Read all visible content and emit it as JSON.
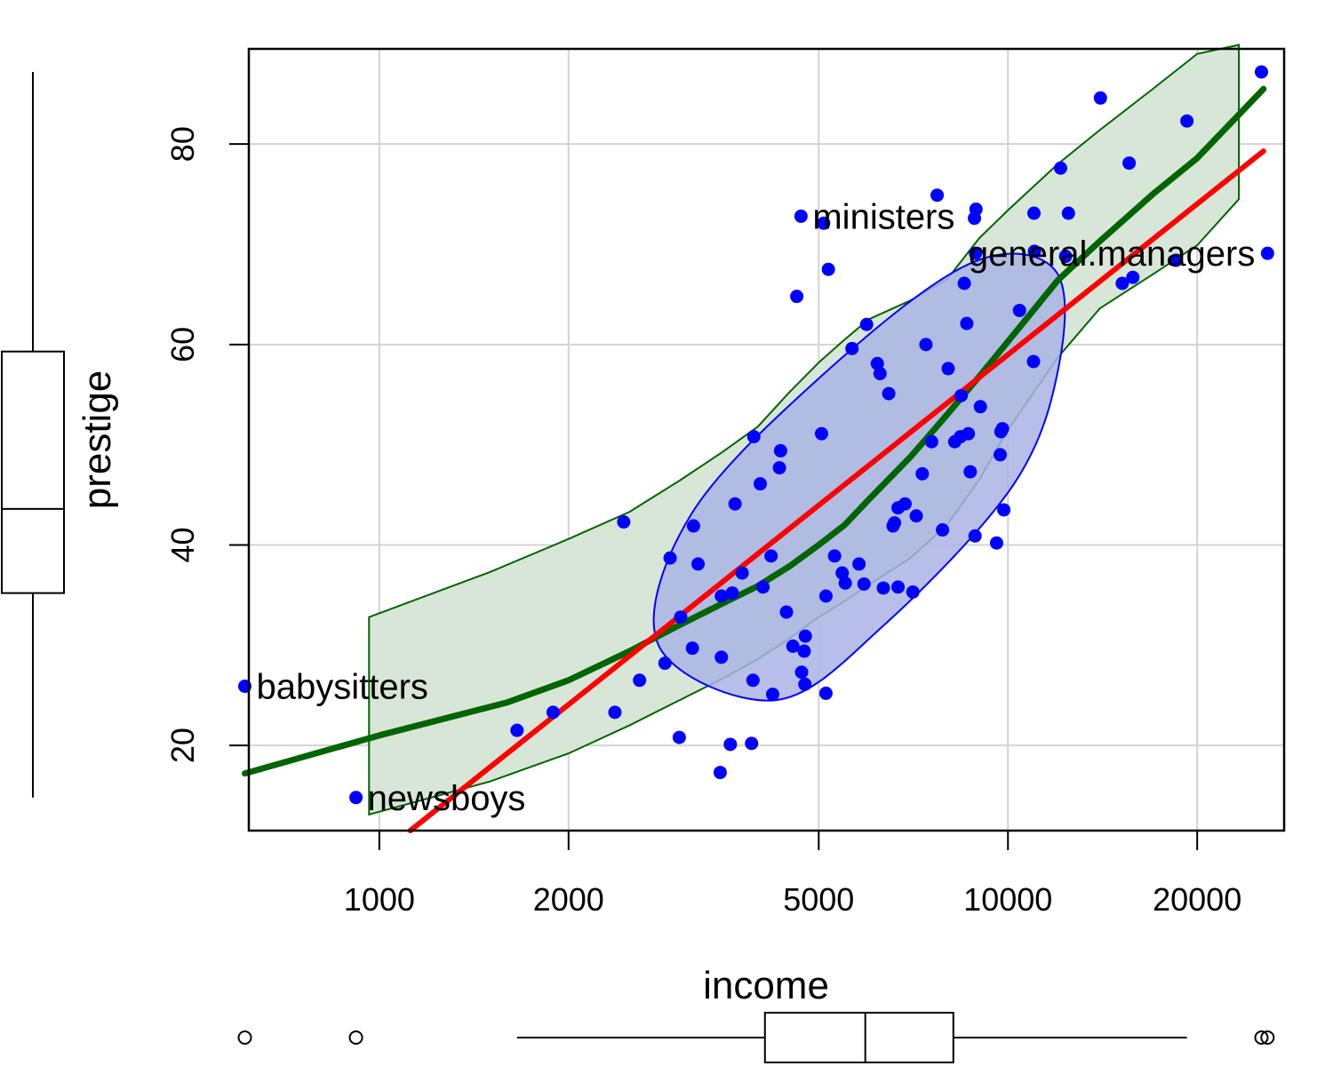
{
  "chart_data": {
    "type": "scatter",
    "xlabel": "income",
    "ylabel": "prestige",
    "x_scale": "log",
    "xlim": [
      620,
      27500
    ],
    "ylim": [
      11.5,
      89.5
    ],
    "grid": true,
    "x_ticks": [
      1000,
      2000,
      5000,
      10000,
      20000
    ],
    "y_ticks": [
      20,
      40,
      60,
      80
    ],
    "colors": {
      "points": "#0000ff",
      "regression_line": "#ff0000",
      "smoother": "#006400",
      "smoother_band_fill": "#d7e6d7",
      "smoother_band_stroke": "#006400",
      "ellipse_fill": "#aab4e4",
      "ellipse_stroke": "#0000ff",
      "grid": "#d3d3d3",
      "boxplot": "#000000"
    },
    "points": [
      {
        "x": 611,
        "y": 25.9
      },
      {
        "x": 918,
        "y": 14.8
      },
      {
        "x": 1656,
        "y": 21.5
      },
      {
        "x": 1890,
        "y": 23.3
      },
      {
        "x": 2370,
        "y": 23.3
      },
      {
        "x": 2448,
        "y": 42.3
      },
      {
        "x": 2594,
        "y": 26.5
      },
      {
        "x": 2847,
        "y": 28.2
      },
      {
        "x": 2901,
        "y": 38.7
      },
      {
        "x": 3000,
        "y": 20.8
      },
      {
        "x": 3016,
        "y": 32.8
      },
      {
        "x": 3148,
        "y": 29.7
      },
      {
        "x": 3161,
        "y": 41.9
      },
      {
        "x": 3214,
        "y": 38.1
      },
      {
        "x": 3485,
        "y": 17.3
      },
      {
        "x": 3500,
        "y": 28.8
      },
      {
        "x": 3500,
        "y": 34.9
      },
      {
        "x": 3617,
        "y": 20.1
      },
      {
        "x": 3643,
        "y": 35.2
      },
      {
        "x": 3680,
        "y": 44.1
      },
      {
        "x": 3777,
        "y": 37.2
      },
      {
        "x": 3910,
        "y": 20.2
      },
      {
        "x": 3930,
        "y": 26.5
      },
      {
        "x": 3942,
        "y": 50.8
      },
      {
        "x": 4036,
        "y": 46.1
      },
      {
        "x": 4076,
        "y": 35.8
      },
      {
        "x": 4199,
        "y": 38.9
      },
      {
        "x": 4224,
        "y": 25.1
      },
      {
        "x": 4330,
        "y": 47.7
      },
      {
        "x": 4348,
        "y": 49.4
      },
      {
        "x": 4443,
        "y": 33.3
      },
      {
        "x": 4549,
        "y": 29.9
      },
      {
        "x": 4614,
        "y": 64.8
      },
      {
        "x": 4686,
        "y": 72.8
      },
      {
        "x": 4696,
        "y": 27.3
      },
      {
        "x": 4741,
        "y": 29.4
      },
      {
        "x": 4753,
        "y": 26.1
      },
      {
        "x": 4761,
        "y": 30.9
      },
      {
        "x": 5052,
        "y": 51.1
      },
      {
        "x": 5092,
        "y": 72.1
      },
      {
        "x": 5134,
        "y": 25.2
      },
      {
        "x": 5134,
        "y": 34.9
      },
      {
        "x": 5180,
        "y": 67.5
      },
      {
        "x": 5299,
        "y": 38.9
      },
      {
        "x": 5449,
        "y": 37.2
      },
      {
        "x": 5511,
        "y": 36.2
      },
      {
        "x": 5648,
        "y": 59.6
      },
      {
        "x": 5795,
        "y": 38.1
      },
      {
        "x": 5902,
        "y": 36.1
      },
      {
        "x": 5959,
        "y": 62.0
      },
      {
        "x": 6197,
        "y": 58.1
      },
      {
        "x": 6259,
        "y": 57.1
      },
      {
        "x": 6336,
        "y": 35.7
      },
      {
        "x": 6462,
        "y": 55.1
      },
      {
        "x": 6565,
        "y": 41.9
      },
      {
        "x": 6600,
        "y": 42.2
      },
      {
        "x": 6686,
        "y": 35.8
      },
      {
        "x": 6686,
        "y": 43.7
      },
      {
        "x": 6860,
        "y": 44.1
      },
      {
        "x": 7059,
        "y": 35.3
      },
      {
        "x": 7147,
        "y": 42.9
      },
      {
        "x": 7307,
        "y": 47.1
      },
      {
        "x": 7405,
        "y": 60.0
      },
      {
        "x": 7562,
        "y": 50.3
      },
      {
        "x": 7716,
        "y": 74.9
      },
      {
        "x": 7869,
        "y": 41.5
      },
      {
        "x": 8034,
        "y": 57.6
      },
      {
        "x": 8230,
        "y": 50.3
      },
      {
        "x": 8403,
        "y": 50.8
      },
      {
        "x": 8425,
        "y": 54.9
      },
      {
        "x": 8522,
        "y": 66.1
      },
      {
        "x": 8600,
        "y": 62.1
      },
      {
        "x": 8650,
        "y": 51.1
      },
      {
        "x": 8710,
        "y": 47.3
      },
      {
        "x": 8845,
        "y": 72.6
      },
      {
        "x": 8865,
        "y": 40.9
      },
      {
        "x": 8880,
        "y": 69.1
      },
      {
        "x": 8895,
        "y": 73.5
      },
      {
        "x": 9040,
        "y": 53.8
      },
      {
        "x": 9593,
        "y": 40.2
      },
      {
        "x": 9720,
        "y": 49.0
      },
      {
        "x": 9746,
        "y": 51.3
      },
      {
        "x": 9800,
        "y": 51.6
      },
      {
        "x": 9849,
        "y": 43.5
      },
      {
        "x": 10432,
        "y": 63.4
      },
      {
        "x": 10981,
        "y": 58.3
      },
      {
        "x": 11000,
        "y": 73.1
      },
      {
        "x": 11020,
        "y": 69.3
      },
      {
        "x": 12127,
        "y": 77.6
      },
      {
        "x": 12351,
        "y": 68.8
      },
      {
        "x": 12480,
        "y": 73.1
      },
      {
        "x": 14032,
        "y": 84.6
      },
      {
        "x": 15200,
        "y": 66.1
      },
      {
        "x": 15589,
        "y": 78.1
      },
      {
        "x": 15800,
        "y": 66.7
      },
      {
        "x": 18500,
        "y": 68.4
      },
      {
        "x": 19263,
        "y": 82.3
      },
      {
        "x": 25308,
        "y": 87.2
      },
      {
        "x": 25879,
        "y": 69.1
      }
    ],
    "labeled_points": [
      {
        "label": "babysitters",
        "x": 611,
        "y": 25.9
      },
      {
        "label": "newsboys",
        "x": 918,
        "y": 14.8
      },
      {
        "label": "ministers",
        "x": 4686,
        "y": 72.8
      },
      {
        "label": "general.managers",
        "x": 25879,
        "y": 69.1
      }
    ],
    "regression_line": {
      "x": [
        1120,
        25500
      ],
      "y": [
        11.5,
        79.3
      ]
    },
    "smoother": {
      "x": [
        611,
        1000,
        1600,
        2000,
        2500,
        3000,
        3500,
        4000,
        4500,
        5000,
        5500,
        6000,
        7000,
        8000,
        9000,
        10000,
        12000,
        14000,
        17000,
        20000,
        25500
      ],
      "y": [
        17.2,
        21.0,
        24.3,
        26.5,
        29.4,
        32.0,
        34.1,
        35.9,
        37.9,
        40.0,
        42.0,
        44.5,
        48.8,
        53.0,
        56.8,
        60.3,
        66.4,
        70.3,
        75.0,
        78.6,
        85.5
      ]
    },
    "smoother_band": {
      "x": [
        963,
        1500,
        2000,
        2500,
        3000,
        3500,
        4000,
        4500,
        5000,
        5500,
        6000,
        7000,
        8000,
        9000,
        10000,
        12000,
        14000,
        17000,
        20000,
        23300
      ],
      "upper": [
        32.8,
        37.3,
        40.6,
        43.3,
        46.4,
        49.2,
        51.8,
        55.3,
        58.2,
        60.5,
        62.5,
        64.4,
        66.5,
        70.6,
        73.4,
        78.0,
        81.4,
        85.5,
        89.0,
        89.9
      ],
      "lower": [
        13.1,
        16.4,
        19.2,
        22.0,
        24.5,
        26.6,
        28.6,
        30.7,
        32.8,
        34.4,
        36.0,
        38.7,
        42.0,
        46.5,
        51.5,
        58.7,
        63.6,
        67.0,
        69.9,
        74.5
      ]
    },
    "ellipse": {
      "x": [
        4250,
        2780,
        3130,
        5080,
        8650,
        11850,
        12060,
        10200,
        6350,
        4250
      ],
      "y": [
        24.5,
        30.0,
        43.0,
        57.0,
        68.0,
        67.5,
        58.0,
        46.0,
        32.0,
        24.5
      ]
    },
    "x_boxplot": {
      "lower_whisker": 1656,
      "q1": 4106,
      "median": 5930,
      "q3": 8187,
      "upper_whisker": 19263,
      "outliers": [
        611,
        918,
        25308,
        25879
      ]
    },
    "y_boxplot": {
      "lower_whisker": 14.8,
      "q1": 35.2,
      "median": 43.6,
      "q3": 59.3,
      "upper_whisker": 87.2
    }
  }
}
